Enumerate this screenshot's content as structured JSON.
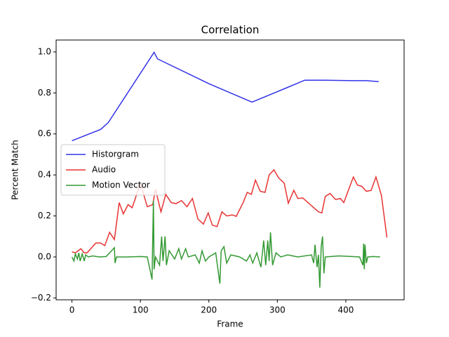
{
  "chart_data": {
    "type": "line",
    "title": "Correlation",
    "xlabel": "Frame",
    "ylabel": "Percent Match",
    "xlim": [
      -23.1,
      485.1
    ],
    "ylim": [
      -0.209,
      1.058
    ],
    "xticks": [
      0,
      100,
      200,
      300,
      400
    ],
    "yticks": [
      {
        "value": -0.2,
        "label": "−0.2"
      },
      {
        "value": 0.0,
        "label": "0.0"
      },
      {
        "value": 0.2,
        "label": "0.2"
      },
      {
        "value": 0.4,
        "label": "0.4"
      },
      {
        "value": 0.6,
        "label": "0.6"
      },
      {
        "value": 0.8,
        "label": "0.8"
      },
      {
        "value": 1.0,
        "label": "1.0"
      }
    ],
    "legend": "center left",
    "series": [
      {
        "name": "Historgram",
        "color": "#3333e8",
        "x": [
          0,
          42,
          53,
          120,
          125,
          200,
          263,
          310,
          340,
          370,
          410,
          430,
          448
        ],
        "values": [
          0.567,
          0.622,
          0.655,
          0.998,
          0.966,
          0.845,
          0.755,
          0.82,
          0.862,
          0.862,
          0.86,
          0.86,
          0.855
        ]
      },
      {
        "name": "Audio",
        "color": "#e83333",
        "x": [
          0,
          5,
          13,
          18,
          22,
          35,
          42,
          48,
          55,
          62,
          69,
          75,
          82,
          88,
          100,
          110,
          118,
          122,
          130,
          137,
          145,
          152,
          160,
          168,
          176,
          184,
          192,
          199,
          205,
          212,
          219,
          226,
          234,
          240,
          250,
          256,
          262,
          268,
          275,
          282,
          288,
          295,
          302,
          310,
          316,
          324,
          330,
          337,
          343,
          360,
          365,
          370,
          377,
          385,
          392,
          397,
          411,
          417,
          423,
          430,
          437,
          444,
          452,
          460
        ],
        "values": [
          0.025,
          0.02,
          0.04,
          0.02,
          0.02,
          0.068,
          0.068,
          0.055,
          0.12,
          0.085,
          0.265,
          0.21,
          0.255,
          0.24,
          0.36,
          0.245,
          0.255,
          0.33,
          0.22,
          0.305,
          0.265,
          0.26,
          0.275,
          0.245,
          0.285,
          0.185,
          0.16,
          0.215,
          0.155,
          0.148,
          0.22,
          0.2,
          0.205,
          0.198,
          0.265,
          0.315,
          0.305,
          0.375,
          0.32,
          0.315,
          0.4,
          0.425,
          0.385,
          0.36,
          0.262,
          0.325,
          0.285,
          0.288,
          0.27,
          0.22,
          0.215,
          0.295,
          0.31,
          0.28,
          0.285,
          0.265,
          0.39,
          0.35,
          0.345,
          0.32,
          0.325,
          0.39,
          0.3,
          0.095
        ]
      },
      {
        "name": "Motion Vector",
        "color": "#339933",
        "x": [
          0,
          3,
          5,
          8,
          10,
          12,
          15,
          18,
          20,
          24,
          30,
          40,
          50,
          62,
          63,
          65,
          80,
          100,
          110,
          117,
          118,
          119,
          120,
          122,
          128,
          131,
          133,
          136,
          138,
          142,
          150,
          156,
          160,
          166,
          170,
          180,
          186,
          190,
          195,
          200,
          210,
          216,
          218,
          222,
          226,
          232,
          245,
          255,
          260,
          264,
          270,
          276,
          280,
          283,
          286,
          288,
          290,
          293,
          298,
          305,
          315,
          330,
          350,
          353,
          355,
          358,
          360,
          362,
          364,
          366,
          368,
          370,
          390,
          420,
          425,
          426,
          427,
          428,
          430,
          432,
          440,
          450
        ],
        "values": [
          0,
          -0.02,
          0.015,
          -0.01,
          0.02,
          -0.02,
          0.015,
          -0.02,
          0.01,
          0,
          0.005,
          0,
          0.002,
          0.045,
          -0.03,
          0,
          0,
          0.002,
          0,
          -0.11,
          0.09,
          0.275,
          -0.06,
          0,
          -0.04,
          0.1,
          -0.02,
          0.1,
          -0.04,
          0.03,
          -0.01,
          0.04,
          -0.01,
          0.04,
          0,
          0.01,
          -0.03,
          0.03,
          -0.02,
          0,
          0.02,
          -0.13,
          0.03,
          0.05,
          -0.03,
          0.01,
          0,
          -0.02,
          0.01,
          -0.03,
          0.02,
          -0.05,
          0.08,
          -0.04,
          0.08,
          -0.02,
          0.12,
          -0.04,
          0.02,
          0,
          0.01,
          0,
          0.01,
          -0.03,
          0.06,
          -0.05,
          0.01,
          -0.15,
          0.05,
          0.1,
          -0.08,
          0,
          0.005,
          0,
          -0.04,
          0.065,
          -0.06,
          0.06,
          -0.03,
          0,
          0.002,
          0
        ]
      }
    ]
  }
}
